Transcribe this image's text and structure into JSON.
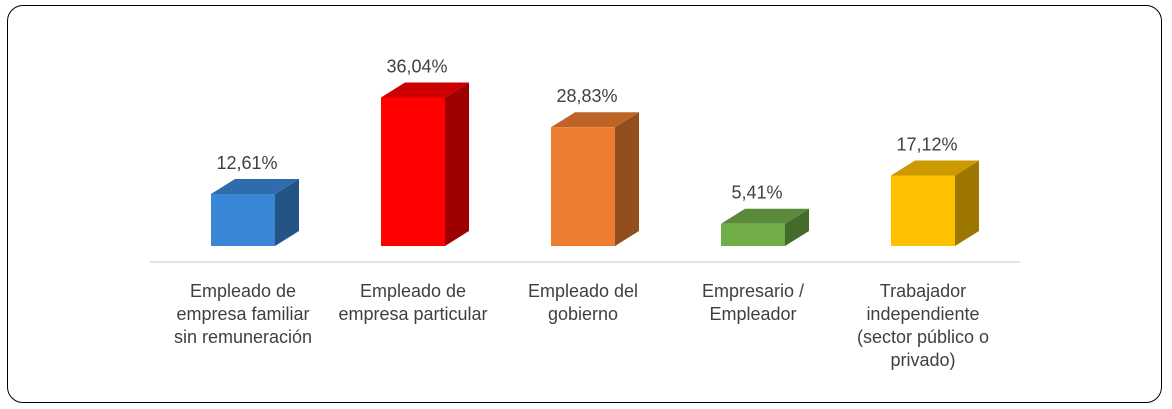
{
  "chart_data": {
    "type": "bar3d",
    "categories": [
      "Empleado de empresa familiar sin remuneración",
      "Empleado de empresa particular",
      "Empleado del gobierno",
      "Empresario / Empleador",
      "Trabajador independiente (sector público o privado)"
    ],
    "values": [
      12.61,
      36.04,
      28.83,
      5.41,
      17.12
    ],
    "value_labels": [
      "12,61%",
      "36,04%",
      "28,83%",
      "5,41%",
      "17,12%"
    ],
    "colors": [
      "#3a87d8",
      "#ff0000",
      "#ed7d31",
      "#70ad47",
      "#ffc000"
    ]
  }
}
